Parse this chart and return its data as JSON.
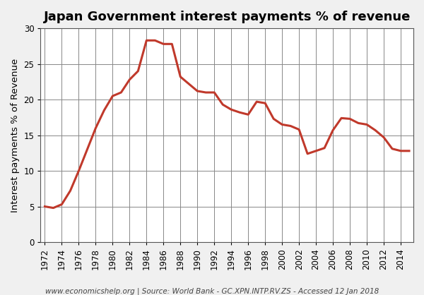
{
  "title": "Japan Government interest payments % of revenue",
  "ylabel": "Interest payments % of Revenue",
  "footnote": "www.economicshelp.org | Source: World Bank - GC.XPN.INTP.RV.ZS - Accessed 12 Jan 2018",
  "years": [
    1972,
    1973,
    1974,
    1975,
    1976,
    1977,
    1978,
    1979,
    1980,
    1981,
    1982,
    1983,
    1984,
    1985,
    1986,
    1987,
    1988,
    1989,
    1990,
    1991,
    1992,
    1993,
    1994,
    1995,
    1996,
    1997,
    1998,
    1999,
    2000,
    2001,
    2002,
    2003,
    2004,
    2005,
    2006,
    2007,
    2008,
    2009,
    2010,
    2011,
    2012,
    2013,
    2014,
    2015
  ],
  "values": [
    5.0,
    4.8,
    5.3,
    7.2,
    10.0,
    13.0,
    16.0,
    18.5,
    20.5,
    21.0,
    22.8,
    24.0,
    28.3,
    28.3,
    27.8,
    27.8,
    23.2,
    22.2,
    21.2,
    21.0,
    21.0,
    19.3,
    18.6,
    18.2,
    17.9,
    19.7,
    19.5,
    17.3,
    16.5,
    16.3,
    15.8,
    12.4,
    12.8,
    13.2,
    15.7,
    17.4,
    17.3,
    16.7,
    16.5,
    15.7,
    14.7,
    13.1,
    12.8,
    12.8
  ],
  "line_color": "#c0392b",
  "fill_color": "none",
  "bg_color": "#f0f0f0",
  "plot_bg_color": "#ffffff",
  "grid_color": "#888888",
  "ylim": [
    0,
    30
  ],
  "xlim": [
    1971.5,
    2015.5
  ],
  "yticks": [
    0,
    5,
    10,
    15,
    20,
    25,
    30
  ],
  "xtick_years": [
    1972,
    1974,
    1976,
    1978,
    1980,
    1982,
    1984,
    1986,
    1988,
    1990,
    1992,
    1994,
    1996,
    1998,
    2000,
    2002,
    2004,
    2006,
    2008,
    2010,
    2012,
    2014
  ],
  "title_fontsize": 13,
  "label_fontsize": 9.5,
  "tick_fontsize": 8.5,
  "footnote_fontsize": 7.5,
  "line_width": 2.2
}
